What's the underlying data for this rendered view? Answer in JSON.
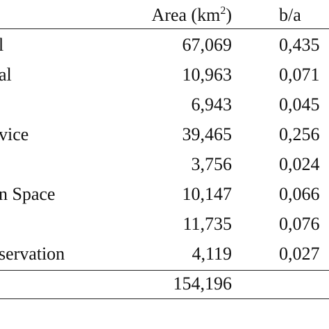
{
  "table": {
    "header": {
      "area_label": "Area (km",
      "area_sup": "2",
      "area_close": ")",
      "ratio_label": "b/a"
    },
    "rows": [
      {
        "name": "l",
        "area": "67,069",
        "ratio": "0,435"
      },
      {
        "name": "al",
        "area": "10,963",
        "ratio": "0,071"
      },
      {
        "name": "",
        "area": "6,943",
        "ratio": "0,045"
      },
      {
        "name": "vice",
        "area": "39,465",
        "ratio": "0,256"
      },
      {
        "name": "",
        "area": "3,756",
        "ratio": "0,024"
      },
      {
        "name": "n Space",
        "area": "10,147",
        "ratio": "0,066"
      },
      {
        "name": "",
        "area": "11,735",
        "ratio": "0,076"
      },
      {
        "name": "servation",
        "area": "4,119",
        "ratio": "0,027"
      }
    ],
    "total": {
      "area": "154,196"
    }
  }
}
